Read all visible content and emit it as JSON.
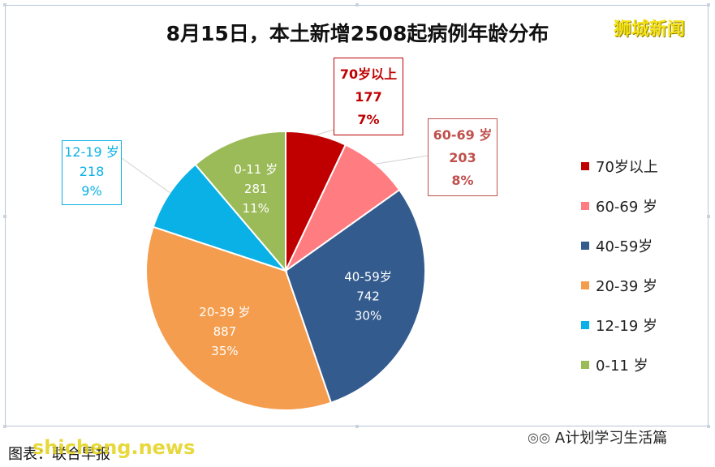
{
  "watermark_top": "狮城新闻",
  "watermark_bottom": "shicheng.news",
  "source_text": "图表：联合早报",
  "wechat_account": "A计划学习生活篇",
  "chart_data": {
    "type": "pie",
    "title": "8月15日，本土新增2508起病例年龄分布",
    "slices": [
      {
        "name": "70岁以上",
        "value": 177,
        "percent": "7%",
        "color": "#c00000",
        "label_line1": "70岁以上",
        "label_color": "#c00000",
        "label_style": "callout-top"
      },
      {
        "name": "60-69 岁",
        "value": 203,
        "percent": "8%",
        "color": "#ff7c80",
        "label_line1": "60-69 岁",
        "label_color": "#c0504d",
        "label_style": "callout-right"
      },
      {
        "name": "40-59岁",
        "value": 742,
        "percent": "30%",
        "color": "#335b8e",
        "label_line1": "40-59岁",
        "label_color": "#ffffff",
        "label_style": "inside"
      },
      {
        "name": "20-39 岁",
        "value": 887,
        "percent": "35%",
        "color": "#f59d4e",
        "label_line1": "20-39 岁",
        "label_color": "#ffffff",
        "label_style": "inside"
      },
      {
        "name": "12-19 岁",
        "value": 218,
        "percent": "9%",
        "color": "#0ab1e6",
        "label_line1": "12-19 岁",
        "label_color": "#0ab1e6",
        "label_style": "callout-left"
      },
      {
        "name": "0-11 岁",
        "value": 281,
        "percent": "11%",
        "color": "#9bbb59",
        "label_line1": "0-11 岁",
        "label_color": "#ffffff",
        "label_style": "inside"
      }
    ],
    "legend": [
      "70岁以上",
      "60-69 岁",
      "40-59岁",
      "20-39 岁",
      "12-19 岁",
      "0-11 岁"
    ],
    "legend_position": "right"
  }
}
